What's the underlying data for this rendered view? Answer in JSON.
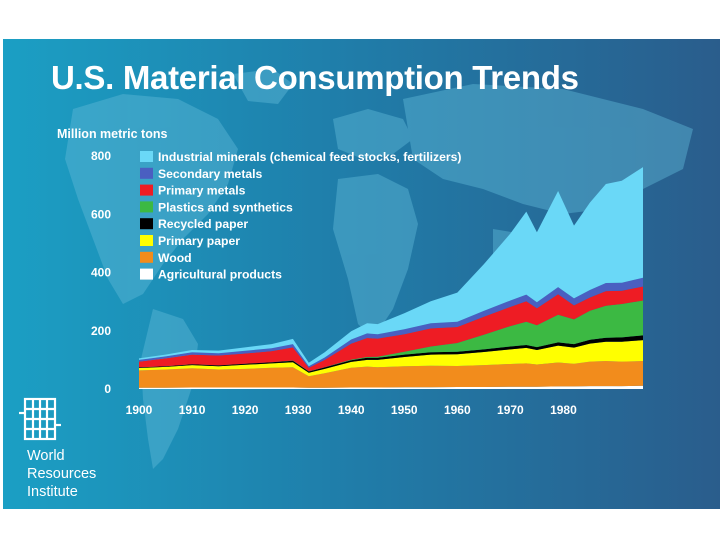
{
  "slide": {
    "title": "U.S. Material Consumption Trends",
    "organization": {
      "lines": [
        "World",
        "Resources",
        "Institute"
      ]
    }
  },
  "chart_data": {
    "type": "area",
    "stacked": true,
    "title": "U.S. Material Consumption Trends",
    "ylabel": "Million metric tons",
    "xlabel": "",
    "xlim": [
      1900,
      1995
    ],
    "ylim": [
      0,
      800
    ],
    "y_ticks": [
      0,
      200,
      400,
      600,
      800
    ],
    "x_ticks": [
      1900,
      1910,
      1920,
      1930,
      1940,
      1950,
      1960,
      1970,
      1980
    ],
    "legend_position": "top-left",
    "x": [
      1900,
      1905,
      1910,
      1915,
      1920,
      1925,
      1929,
      1932,
      1935,
      1940,
      1943,
      1945,
      1950,
      1955,
      1960,
      1965,
      1970,
      1973,
      1975,
      1979,
      1982,
      1985,
      1988,
      1991,
      1995
    ],
    "series": [
      {
        "name": "Agricultural products",
        "color": "#ffffff",
        "values": [
          4,
          4,
          5,
          5,
          5,
          5,
          5,
          4,
          4,
          5,
          5,
          5,
          6,
          6,
          7,
          7,
          8,
          8,
          8,
          9,
          9,
          10,
          10,
          10,
          11
        ]
      },
      {
        "name": "Wood",
        "color": "#f28c1c",
        "values": [
          60,
          63,
          66,
          62,
          64,
          68,
          70,
          40,
          50,
          68,
          72,
          70,
          72,
          74,
          72,
          75,
          78,
          80,
          76,
          82,
          78,
          84,
          86,
          84,
          85
        ]
      },
      {
        "name": "Primary paper",
        "color": "#ffff00",
        "values": [
          8,
          9,
          11,
          11,
          14,
          15,
          17,
          12,
          15,
          20,
          23,
          25,
          32,
          38,
          40,
          45,
          50,
          53,
          50,
          58,
          55,
          62,
          66,
          68,
          72
        ]
      },
      {
        "name": "Recycled paper",
        "color": "#000000",
        "values": [
          2,
          2,
          3,
          3,
          4,
          4,
          5,
          4,
          5,
          6,
          7,
          7,
          8,
          8,
          9,
          9,
          10,
          10,
          10,
          11,
          12,
          13,
          14,
          15,
          16
        ]
      },
      {
        "name": "Plastics and synthetics",
        "color": "#3cb943",
        "values": [
          0,
          0,
          0,
          0,
          0,
          0,
          1,
          1,
          1,
          2,
          3,
          4,
          10,
          20,
          30,
          50,
          70,
          80,
          75,
          95,
          85,
          100,
          110,
          115,
          120
        ]
      },
      {
        "name": "Primary metals",
        "color": "#ee1c24",
        "values": [
          20,
          27,
          33,
          34,
          35,
          38,
          45,
          12,
          25,
          55,
          65,
          62,
          60,
          62,
          55,
          62,
          66,
          70,
          58,
          70,
          48,
          45,
          50,
          45,
          48
        ]
      },
      {
        "name": "Secondary metals",
        "color": "#4a5fc1",
        "values": [
          6,
          7,
          8,
          8,
          9,
          10,
          11,
          5,
          8,
          14,
          16,
          15,
          17,
          18,
          18,
          20,
          22,
          23,
          21,
          25,
          24,
          26,
          28,
          28,
          30
        ]
      },
      {
        "name": "Industrial minerals (chemical feed stocks, fertilizers)",
        "color": "#6ad8f7",
        "values": [
          5,
          6,
          8,
          9,
          12,
          14,
          18,
          12,
          18,
          28,
          35,
          35,
          55,
          75,
          100,
          160,
          230,
          285,
          240,
          330,
          250,
          300,
          340,
          350,
          380
        ]
      }
    ]
  }
}
